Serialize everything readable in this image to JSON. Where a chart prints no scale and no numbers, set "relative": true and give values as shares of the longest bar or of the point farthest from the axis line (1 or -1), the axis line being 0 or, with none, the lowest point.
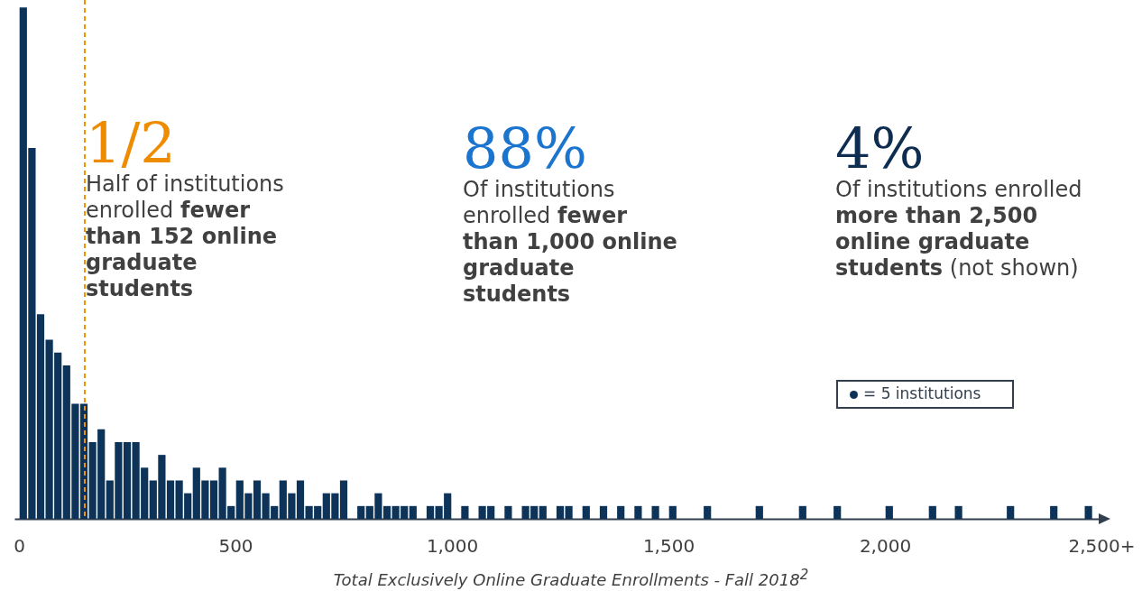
{
  "chart_data": {
    "type": "bar",
    "relative": true,
    "color": "#0d3358",
    "x": [
      10,
      30,
      50,
      70,
      90,
      110,
      130,
      150,
      170,
      190,
      210,
      230,
      250,
      270,
      290,
      310,
      330,
      350,
      370,
      390,
      410,
      430,
      450,
      470,
      490,
      510,
      530,
      550,
      570,
      590,
      610,
      630,
      650,
      670,
      690,
      710,
      730,
      750,
      770,
      790,
      810,
      830,
      850,
      870,
      890,
      910,
      930,
      950,
      970,
      990,
      1010,
      1030,
      1050,
      1070,
      1090,
      1110,
      1130,
      1150,
      1170,
      1190,
      1210,
      1230,
      1250,
      1270,
      1290,
      1310,
      1330,
      1350,
      1370,
      1390,
      1410,
      1430,
      1450,
      1470,
      1490,
      1510,
      1530,
      1550,
      1570,
      1590,
      1610,
      1630,
      1650,
      1670,
      1690,
      1710,
      1730,
      1750,
      1770,
      1790,
      1810,
      1830,
      1850,
      1870,
      1890,
      1910,
      1930,
      1950,
      1970,
      1990,
      2010,
      2030,
      2050,
      2070,
      2090,
      2110,
      2130,
      2150,
      2170,
      2190,
      2210,
      2230,
      2250,
      2270,
      2290,
      2310,
      2330,
      2350,
      2370,
      2390,
      2410,
      2430,
      2450,
      2470,
      2490
    ],
    "xlabel": "Total Exclusively Online Graduate Enrollments - Fall 2018$^{2}$",
    "values": [
      1,
      0.725,
      0.4,
      0.35,
      0.325,
      0.3,
      0.225,
      0.225,
      0.15,
      0.175,
      0.075,
      0.15,
      0.15,
      0.15,
      0.1,
      0.075,
      0.125,
      0.075,
      0.075,
      0.05,
      0.1,
      0.075,
      0.075,
      0.1,
      0.025,
      0.075,
      0.05,
      0.075,
      0.05,
      0.025,
      0.075,
      0.05,
      0.075,
      0.025,
      0.025,
      0.05,
      0.05,
      0.075,
      0,
      0.025,
      0.025,
      0.05,
      0.025,
      0.025,
      0.025,
      0.025,
      0,
      0.025,
      0.025,
      0.05,
      0,
      0.025,
      0,
      0.025,
      0.025,
      0,
      0.025,
      0,
      0.025,
      0.025,
      0.025,
      0,
      0.025,
      0.025,
      0,
      0.025,
      0,
      0.025,
      0,
      0.025,
      0,
      0.025,
      0,
      0.025,
      0,
      0.025,
      0,
      0,
      0,
      0.025,
      0,
      0,
      0,
      0,
      0,
      0.025,
      0,
      0,
      0,
      0,
      0.025,
      0,
      0,
      0,
      0.025,
      0,
      0,
      0,
      0,
      0,
      0.025,
      0,
      0,
      0,
      0,
      0.025,
      0,
      0,
      0.025,
      0,
      0,
      0,
      0,
      0,
      0.025,
      0,
      0,
      0,
      0,
      0.025,
      0,
      0,
      0,
      0.025,
      0
    ],
    "xlim": [
      0,
      2500
    ],
    "xticks": [
      0,
      500,
      {
        "value": 1000,
        "label": "1,000"
      },
      {
        "value": 1500,
        "label": "1,500"
      },
      {
        "value": 2000,
        "label": "2,000"
      },
      {
        "value": 2500,
        "label": "2,500+"
      }
    ],
    "ref_lines": [
      {
        "axis": "x",
        "value": 152,
        "color": "#f39200",
        "line_style": "dashed"
      }
    ],
    "annotations": [
      "1/2",
      "Half of institutions enrolled",
      "fewer than 152 online graduate students",
      "88%",
      "Of institutions enrolled",
      "fewer than 1,000 online graduate students",
      "4%",
      "Of institutions enrolled",
      "more than 2,500 online graduate students",
      "(not shown)",
      "= 5 institutions"
    ],
    "grid": false
  }
}
